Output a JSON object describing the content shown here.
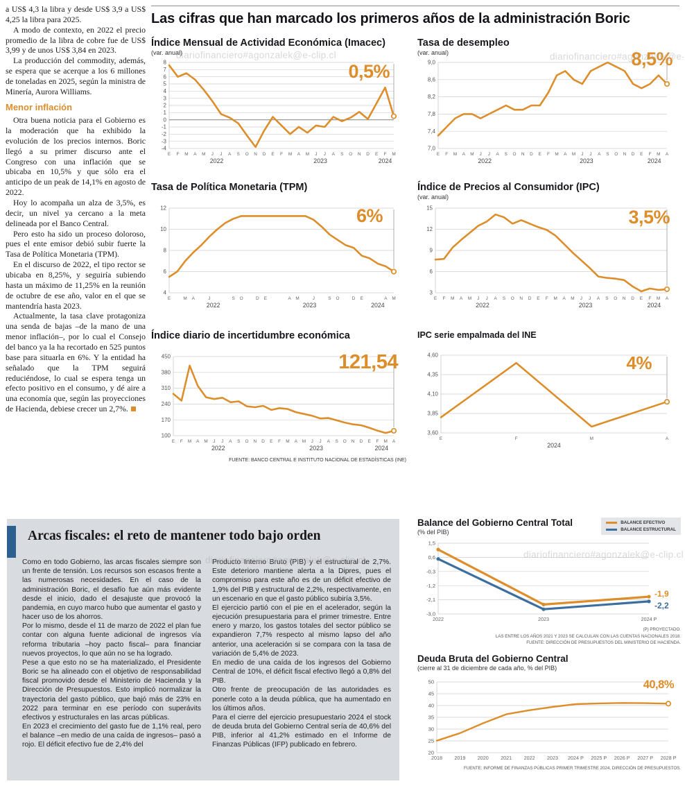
{
  "watermark": "diariofinanciero#agonzalek@e-clip.cl",
  "main_title": "Las cifras que han marcado los primeros años de la administración Boric",
  "source_top": "FUENTE: BANCO CENTRAL E INSTITUTO NACIONAL DE ESTADÍSTICAS (INE)",
  "accent_color": "#DD8E2B",
  "blue_color": "#3d6f9e",
  "left_article": {
    "top": [
      "a US$ 4,3 la libra y desde US$ 3,9 a US$ 4,25 la libra para 2025.",
      "A modo de contexto, en 2022 el precio promedio de la libra de cobre fue de US$ 3,99 y de unos US$ 3,84 en 2023.",
      "La producción del commodity, además, se espera que se acerque a los 6 millones de toneladas en 2025, según la ministra de Minería, Aurora Williams."
    ],
    "heading": "Menor inflación",
    "body": [
      "Otra buena noticia para el Gobierno es la moderación que ha exhibido la evolución de los precios internos. Boric llegó a su primer discurso ante el Congreso con una inflación que se ubicaba en 10,5% y que sólo era el anticipo de un peak de 14,1% en agosto de 2022.",
      "Hoy lo acompaña un alza de 3,5%, es decir, un nivel ya cercano a la meta delineada por el Banco Central.",
      "Pero esto ha sido un proceso doloroso, pues el ente emisor debió subir fuerte la Tasa de Política Monetaria (TPM).",
      "En el discurso de 2022, el tipo rector se ubicaba en 8,25%, y seguiría subiendo hasta un máximo de 11,25% en la reunión de octubre de ese año, valor en el que se mantendría hasta 2023.",
      "Actualmente, la tasa clave protagoniza una senda de bajas –de la mano de una menor inflación–, por lo cual el Consejo del banco ya la ha recortado en 525 puntos base para situarla en 6%. Y la entidad ha señalado que la TPM seguirá reduciéndose, lo cual se espera tenga un efecto positivo en el consumo, y dé aire a una economía que, según las proyecciones de Hacienda, debiese crecer un 2,7%."
    ]
  },
  "fiscal_article": {
    "title": "Arcas fiscales: el reto de mantener todo bajo orden",
    "col1": [
      "Como en todo Gobierno, las arcas fiscales siempre son un frente de tensión. Los recursos son escasos frente a las numerosas necesidades. En el caso de la administración Boric, el desafío fue aún más evidente desde el inicio, dado el desajuste que provocó la pandemia, en cuyo marco hubo que aumentar el gasto y hacer uso de los ahorros.",
      "Por lo mismo, desde el 11 de marzo de 2022 el plan fue contar con alguna fuente adicional de ingresos vía reforma tributaria –hoy pacto fiscal– para financiar nuevos proyectos, lo que aún no se ha logrado.",
      "Pese a que esto no se ha materializado, el Presidente Boric se ha alineado con el objetivo de responsabilidad fiscal promovido desde el Ministerio de Hacienda y la Dirección de Presupuestos. Esto implicó normalizar la trayectoria del gasto público, que bajó más de 23% en 2022 para terminar en ese período con superávits efectivos y estructurales en las arcas públicas.",
      "En 2023 el crecimiento del gasto fue de 1,1% real, pero el balance –en medio de una caída de ingresos– pasó a rojo. El déficit efectivo fue de 2,4% del"
    ],
    "col2": [
      "Producto Interno Bruto (PIB) y el estructural de 2,7%. Este deterioro mantiene alerta a la Dipres, pues el compromiso para este año es de un déficit efectivo de 1,9% del PIB y estructural de 2,2%, respectivamente, en un escenario en que el gasto público subiría 3,5%.",
      "El ejercicio partió con el pie en el acelerador, según la ejecución presupuestaria para el primer trimestre. Entre enero y marzo, los gastos totales del sector público se expandieron 7,7% respecto al mismo lapso del año anterior, una aceleración si se compara con la tasa de variación de 5,4% de 2023.",
      "En medio de una caída de los ingresos del Gobierno Central de 10%, el déficit fiscal efectivo llegó a 0,8% del PIB.",
      "Otro frente de preocupación de las autoridades es ponerle coto a la deuda pública, que ha aumentado en los últimos años.",
      "Para el cierre del ejercicio presupuestario 2024 el stock de deuda bruta del Gobierno Central sería de 40,6% del PIB, inferior al 41,2% estimado en el Informe de Finanzas Públicas (IFP) publicado en febrero."
    ]
  },
  "chart_data": [
    {
      "id": "imacec",
      "type": "line",
      "title": "Índice Mensual de Actividad Económica (Imacec)",
      "subtitle": "(var. anual)",
      "callout": "0,5%",
      "ylim": [
        -4,
        8
      ],
      "yticks": [
        8,
        7,
        6,
        5,
        4,
        3,
        2,
        1,
        0,
        -1,
        -2,
        -3,
        -4
      ],
      "ytick_labels": [
        "8",
        "7",
        "6",
        "5",
        "4",
        "3",
        "2",
        "1",
        "0",
        "-1",
        "-2",
        "-3",
        "-4"
      ],
      "x_labels": [
        "E",
        "F",
        "M",
        "A",
        "M",
        "J",
        "J",
        "A",
        "S",
        "O",
        "N",
        "D",
        "E",
        "F",
        "M",
        "A",
        "M",
        "J",
        "J",
        "A",
        "S",
        "O",
        "N",
        "D",
        "E",
        "F",
        "M"
      ],
      "years": [
        {
          "label": "2022",
          "idx": 5.5
        },
        {
          "label": "2023",
          "idx": 17.5
        },
        {
          "label": "2024",
          "idx": 25
        }
      ],
      "guide": true,
      "end_marker": true,
      "series": [
        {
          "name": "Imacec var. anual",
          "color": "#DD8E2B",
          "values": [
            7.6,
            6.0,
            6.5,
            5.6,
            4.2,
            2.6,
            0.8,
            0.3,
            -0.5,
            -2.2,
            -3.8,
            -1.5,
            0.4,
            -0.8,
            -2.0,
            -1.0,
            -1.8,
            -0.8,
            -1.0,
            0.4,
            -0.2,
            0.3,
            1.1,
            0.1,
            2.3,
            4.5,
            0.5
          ]
        }
      ]
    },
    {
      "id": "desempleo",
      "type": "line",
      "title": "Tasa de desempleo",
      "subtitle": "(var. anual)",
      "callout": "8,5%",
      "ylim": [
        7.0,
        9.0
      ],
      "yticks": [
        9.0,
        8.6,
        8.2,
        7.8,
        7.4,
        7.0
      ],
      "ytick_labels": [
        "9,0",
        "8,6",
        "8,2",
        "7,8",
        "7,4",
        "7,0"
      ],
      "x_labels": [
        "E",
        "F",
        "M",
        "A",
        "M",
        "J",
        "J",
        "A",
        "S",
        "O",
        "N",
        "D",
        "E",
        "F",
        "M",
        "A",
        "M",
        "J",
        "J",
        "A",
        "S",
        "O",
        "N",
        "D",
        "E",
        "F",
        "M",
        "A"
      ],
      "years": [
        {
          "label": "2022",
          "idx": 5.5
        },
        {
          "label": "2023",
          "idx": 17.5
        },
        {
          "label": "2024",
          "idx": 25.5
        }
      ],
      "guide": true,
      "end_marker": true,
      "series": [
        {
          "name": "Tasa de desempleo",
          "color": "#DD8E2B",
          "values": [
            7.3,
            7.5,
            7.7,
            7.8,
            7.8,
            7.7,
            7.8,
            7.9,
            8.0,
            7.9,
            7.9,
            8.0,
            8.0,
            8.3,
            8.7,
            8.8,
            8.6,
            8.5,
            8.8,
            8.9,
            9.0,
            8.9,
            8.8,
            8.5,
            8.4,
            8.5,
            8.7,
            8.5
          ]
        }
      ]
    },
    {
      "id": "tpm",
      "type": "line",
      "title": "Tasa de Política Monetaria (TPM)",
      "subtitle": "",
      "callout": "6%",
      "ylim": [
        4,
        12
      ],
      "yticks": [
        12,
        10,
        8,
        6,
        4
      ],
      "ytick_labels": [
        "12",
        "10",
        "8",
        "6",
        "4"
      ],
      "x_labels": [
        "E",
        "",
        "M",
        "A",
        "",
        "J",
        "",
        "",
        "S",
        "O",
        "",
        "D",
        "E",
        "",
        "",
        "A",
        "M",
        "",
        "J",
        "",
        "S",
        "O",
        "",
        "D",
        "E",
        "",
        "",
        "A",
        "M"
      ],
      "years": [
        {
          "label": "2022",
          "idx": 5.5
        },
        {
          "label": "2023",
          "idx": 17.5
        },
        {
          "label": "2024",
          "idx": 26
        }
      ],
      "guide": true,
      "end_marker": true,
      "series": [
        {
          "name": "TPM",
          "color": "#DD8E2B",
          "values": [
            5.5,
            6.0,
            7.0,
            7.8,
            8.5,
            9.3,
            10.0,
            10.6,
            11.0,
            11.25,
            11.25,
            11.25,
            11.25,
            11.25,
            11.25,
            11.25,
            11.25,
            11.25,
            10.9,
            10.25,
            9.5,
            9.0,
            8.5,
            8.25,
            7.5,
            7.25,
            6.75,
            6.5,
            6.0
          ]
        }
      ]
    },
    {
      "id": "ipc",
      "type": "line",
      "title": "Índice de Precios al Consumidor (IPC)",
      "subtitle": "(var. anual)",
      "callout": "3,5%",
      "ylim": [
        3,
        15
      ],
      "yticks": [
        15,
        12,
        9,
        6,
        3
      ],
      "ytick_labels": [
        "15",
        "12",
        "9",
        "6",
        "3"
      ],
      "x_labels": [
        "E",
        "F",
        "M",
        "A",
        "M",
        "J",
        "J",
        "A",
        "S",
        "O",
        "N",
        "D",
        "E",
        "F",
        "M",
        "A",
        "M",
        "J",
        "J",
        "A",
        "S",
        "O",
        "N",
        "D",
        "E",
        "F",
        "M",
        "A"
      ],
      "years": [
        {
          "label": "2022",
          "idx": 5.5
        },
        {
          "label": "2023",
          "idx": 17.5
        },
        {
          "label": "2024",
          "idx": 25.5
        }
      ],
      "guide": true,
      "end_marker": true,
      "series": [
        {
          "name": "IPC var. anual",
          "color": "#DD8E2B",
          "values": [
            7.7,
            7.8,
            9.4,
            10.5,
            11.5,
            12.5,
            13.1,
            14.1,
            13.7,
            12.8,
            13.3,
            12.8,
            12.3,
            11.9,
            11.1,
            9.9,
            8.7,
            7.6,
            6.5,
            5.3,
            5.1,
            5.0,
            4.8,
            3.9,
            3.2,
            3.6,
            3.4,
            3.5
          ]
        }
      ]
    },
    {
      "id": "incertidumbre",
      "type": "line",
      "title": "Índice diario de incertidumbre económica",
      "subtitle": "",
      "callout": "121,54",
      "ylim": [
        100,
        450
      ],
      "yticks": [
        450,
        380,
        310,
        240,
        170,
        100
      ],
      "ytick_labels": [
        "450",
        "380",
        "310",
        "240",
        "170",
        "100"
      ],
      "x_labels": [
        "E",
        "F",
        "M",
        "A",
        "M",
        "J",
        "J",
        "A",
        "S",
        "O",
        "N",
        "D",
        "E",
        "F",
        "M",
        "A",
        "M",
        "J",
        "J",
        "A",
        "S",
        "O",
        "N",
        "D",
        "E",
        "F",
        "M",
        "A"
      ],
      "years": [
        {
          "label": "2022",
          "idx": 5.5
        },
        {
          "label": "2023",
          "idx": 17.5
        },
        {
          "label": "2024",
          "idx": 25.5
        }
      ],
      "guide": true,
      "end_marker": true,
      "series": [
        {
          "name": "Incertidumbre económica",
          "color": "#DD8E2B",
          "values": [
            285,
            255,
            410,
            320,
            270,
            262,
            268,
            248,
            252,
            230,
            226,
            232,
            214,
            222,
            218,
            204,
            196,
            188,
            176,
            178,
            168,
            158,
            150,
            146,
            135,
            122,
            112,
            121.54
          ]
        }
      ]
    },
    {
      "id": "ipc_ine",
      "type": "line",
      "title": "IPC serie empalmada del INE",
      "subtitle": "",
      "callout": "4%",
      "ylim": [
        3.6,
        4.6
      ],
      "yticks": [
        4.6,
        4.35,
        4.1,
        3.85,
        3.6
      ],
      "ytick_labels": [
        "4,60",
        "4,35",
        "4,10",
        "3,85",
        "3,60"
      ],
      "x_labels": [
        "E",
        "F",
        "M",
        "A"
      ],
      "years": [
        {
          "label": "2024",
          "idx": 1.5
        }
      ],
      "guide": true,
      "end_marker": true,
      "series": [
        {
          "name": "IPC serie empalmada",
          "color": "#DD8E2B",
          "values": [
            3.8,
            4.5,
            3.68,
            4.0
          ]
        }
      ]
    },
    {
      "id": "balance",
      "type": "line",
      "title": "Balance del Gobierno Central Total",
      "subtitle": "(% del PIB)",
      "ylim": [
        -3.0,
        1.5
      ],
      "yticks": [
        1.5,
        0.6,
        -0.3,
        -1.2,
        -2.1,
        -3.0
      ],
      "ytick_labels": [
        "1,5",
        "0,6",
        "-0,3",
        "-1,2",
        "-2,1",
        "-3,0"
      ],
      "x_labels": [
        "2022",
        "2023",
        "2024 P"
      ],
      "years": [],
      "point_dots": true,
      "series": [
        {
          "name": "BALANCE EFECTIVO",
          "color": "#DD8E2B",
          "values": [
            1.1,
            -2.4,
            -1.9
          ],
          "end_label": "-1,9",
          "label_dy": 0
        },
        {
          "name": "BALANCE ESTRUCTURAL",
          "color": "#3d6f9e",
          "values": [
            0.5,
            -2.7,
            -2.2
          ],
          "end_label": "-2,2",
          "label_dy": 10
        }
      ],
      "notes": [
        "(P) PROYECTADO.",
        "LAS ENTRE LOS AÑOS 2021 Y 2023 SE CALCULAN CON LAS CUENTAS NACIONALES 2018.",
        "FUENTE: DIRECCIÓN DE PRESUPUESTOS DEL MINISTERIO DE HACIENDA."
      ]
    },
    {
      "id": "deuda",
      "type": "line",
      "title": "Deuda Bruta del Gobierno Central",
      "subtitle": "(cierre al 31 de diciembre de cada año, % del PIB)",
      "callout": "40,8%",
      "ylim": [
        20,
        50
      ],
      "yticks": [
        50,
        45,
        40,
        35,
        30,
        25,
        20
      ],
      "ytick_labels": [
        "50",
        "45",
        "40",
        "35",
        "30",
        "25",
        "20"
      ],
      "x_labels": [
        "2018",
        "2019",
        "2020",
        "2021",
        "2022",
        "2023",
        "2024 P",
        "2025 P",
        "2026 P",
        "2027 P",
        "2028 P"
      ],
      "years": [],
      "end_marker": true,
      "series": [
        {
          "name": "Deuda bruta",
          "color": "#DD8E2B",
          "values": [
            25.1,
            28.3,
            32.5,
            36.3,
            38.0,
            39.4,
            40.6,
            40.9,
            41.1,
            41.0,
            40.8
          ]
        }
      ],
      "source": "FUENTE: INFORME DE FINANZAS PÚBLICAS PRIMER TRIMESTRE 2024, DIRECCIÓN DE PRESUPUESTOS."
    }
  ]
}
